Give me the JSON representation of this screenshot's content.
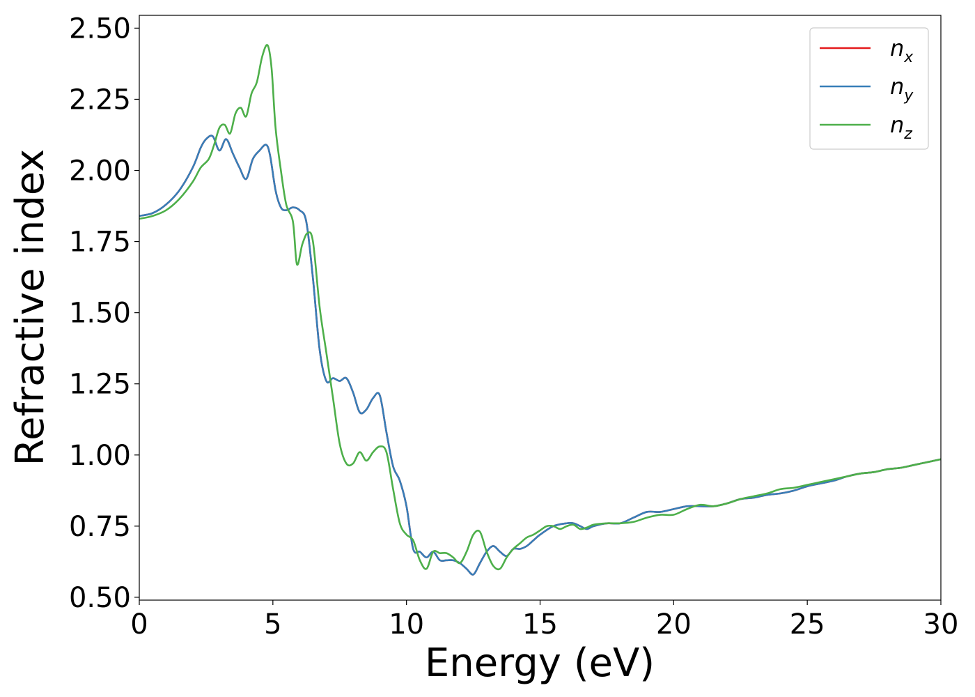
{
  "chart_data": {
    "type": "line",
    "xlabel": "Energy (eV)",
    "ylabel": "Refractive index",
    "xlim": [
      0,
      30
    ],
    "ylim": [
      0.49,
      2.545
    ],
    "xticks": [
      "0",
      "5",
      "10",
      "15",
      "20",
      "25",
      "30"
    ],
    "yticks": [
      "0.50",
      "0.75",
      "1.00",
      "1.25",
      "1.50",
      "1.75",
      "2.00",
      "2.25",
      "2.50"
    ],
    "grid": false,
    "legend_position": "top-right",
    "series": [
      {
        "name": "n_x",
        "legend_base": "n",
        "legend_sub": "x",
        "color": "#e41a1c",
        "x": [
          0,
          0.5,
          1,
          1.5,
          2,
          2.3,
          2.5,
          2.75,
          3,
          3.25,
          3.5,
          3.75,
          4,
          4.25,
          4.5,
          4.75,
          4.9,
          5.1,
          5.3,
          5.5,
          5.75,
          6,
          6.25,
          6.5,
          6.75,
          7,
          7.25,
          7.5,
          7.75,
          8,
          8.25,
          8.5,
          8.75,
          9,
          9.25,
          9.5,
          9.75,
          10,
          10.25,
          10.5,
          10.75,
          11,
          11.25,
          11.5,
          11.75,
          12,
          12.25,
          12.5,
          12.75,
          13,
          13.25,
          13.5,
          13.75,
          14,
          14.25,
          14.5,
          14.75,
          15,
          15.5,
          16,
          16.25,
          16.5,
          16.75,
          17,
          17.5,
          18,
          18.5,
          19,
          19.5,
          20,
          20.5,
          21,
          21.5,
          22,
          22.5,
          23,
          23.5,
          24,
          24.5,
          25,
          25.5,
          26,
          26.5,
          27,
          27.5,
          28,
          28.5,
          29,
          29.5,
          30
        ],
        "y": [
          1.84,
          1.85,
          1.88,
          1.93,
          2.01,
          2.08,
          2.11,
          2.12,
          2.07,
          2.11,
          2.06,
          2.01,
          1.97,
          2.04,
          2.07,
          2.09,
          2.05,
          1.93,
          1.87,
          1.86,
          1.87,
          1.86,
          1.82,
          1.62,
          1.37,
          1.26,
          1.27,
          1.26,
          1.27,
          1.22,
          1.15,
          1.16,
          1.2,
          1.21,
          1.08,
          0.96,
          0.91,
          0.82,
          0.67,
          0.66,
          0.64,
          0.66,
          0.63,
          0.63,
          0.63,
          0.62,
          0.6,
          0.58,
          0.62,
          0.66,
          0.68,
          0.66,
          0.645,
          0.67,
          0.67,
          0.68,
          0.7,
          0.72,
          0.75,
          0.76,
          0.76,
          0.75,
          0.74,
          0.75,
          0.76,
          0.76,
          0.78,
          0.8,
          0.8,
          0.81,
          0.82,
          0.82,
          0.82,
          0.83,
          0.845,
          0.85,
          0.86,
          0.865,
          0.875,
          0.89,
          0.9,
          0.91,
          0.925,
          0.935,
          0.94,
          0.95,
          0.955,
          0.965,
          0.975,
          0.985
        ]
      },
      {
        "name": "n_y",
        "legend_base": "n",
        "legend_sub": "y",
        "color": "#377eb8",
        "x": [
          0,
          0.5,
          1,
          1.5,
          2,
          2.3,
          2.5,
          2.75,
          3,
          3.25,
          3.5,
          3.75,
          4,
          4.25,
          4.5,
          4.75,
          4.9,
          5.1,
          5.3,
          5.5,
          5.75,
          6,
          6.25,
          6.5,
          6.75,
          7,
          7.25,
          7.5,
          7.75,
          8,
          8.25,
          8.5,
          8.75,
          9,
          9.25,
          9.5,
          9.75,
          10,
          10.25,
          10.5,
          10.75,
          11,
          11.25,
          11.5,
          11.75,
          12,
          12.25,
          12.5,
          12.75,
          13,
          13.25,
          13.5,
          13.75,
          14,
          14.25,
          14.5,
          14.75,
          15,
          15.5,
          16,
          16.25,
          16.5,
          16.75,
          17,
          17.5,
          18,
          18.5,
          19,
          19.5,
          20,
          20.5,
          21,
          21.5,
          22,
          22.5,
          23,
          23.5,
          24,
          24.5,
          25,
          25.5,
          26,
          26.5,
          27,
          27.5,
          28,
          28.5,
          29,
          29.5,
          30
        ],
        "y": [
          1.84,
          1.85,
          1.88,
          1.93,
          2.01,
          2.08,
          2.11,
          2.12,
          2.07,
          2.11,
          2.06,
          2.01,
          1.97,
          2.04,
          2.07,
          2.09,
          2.05,
          1.93,
          1.87,
          1.86,
          1.87,
          1.86,
          1.82,
          1.62,
          1.37,
          1.26,
          1.27,
          1.26,
          1.27,
          1.22,
          1.15,
          1.16,
          1.2,
          1.21,
          1.08,
          0.96,
          0.91,
          0.82,
          0.67,
          0.66,
          0.64,
          0.66,
          0.63,
          0.63,
          0.63,
          0.62,
          0.6,
          0.58,
          0.62,
          0.66,
          0.68,
          0.66,
          0.645,
          0.67,
          0.67,
          0.68,
          0.7,
          0.72,
          0.75,
          0.76,
          0.76,
          0.75,
          0.74,
          0.75,
          0.76,
          0.76,
          0.78,
          0.8,
          0.8,
          0.81,
          0.82,
          0.82,
          0.82,
          0.83,
          0.845,
          0.85,
          0.86,
          0.865,
          0.875,
          0.89,
          0.9,
          0.91,
          0.925,
          0.935,
          0.94,
          0.95,
          0.955,
          0.965,
          0.975,
          0.985
        ]
      },
      {
        "name": "n_z",
        "legend_base": "n",
        "legend_sub": "z",
        "color": "#4daf4a",
        "x": [
          0,
          0.5,
          1,
          1.5,
          2,
          2.3,
          2.6,
          2.8,
          3,
          3.2,
          3.4,
          3.6,
          3.8,
          4,
          4.2,
          4.4,
          4.6,
          4.8,
          4.95,
          5.1,
          5.3,
          5.5,
          5.75,
          5.9,
          6.1,
          6.3,
          6.5,
          6.75,
          7,
          7.25,
          7.5,
          7.75,
          8,
          8.25,
          8.5,
          8.75,
          9,
          9.25,
          9.5,
          9.75,
          10,
          10.25,
          10.5,
          10.75,
          11,
          11.25,
          11.5,
          11.75,
          12,
          12.25,
          12.5,
          12.75,
          13,
          13.25,
          13.5,
          13.75,
          14,
          14.25,
          14.5,
          14.75,
          15,
          15.25,
          15.5,
          15.75,
          16,
          16.25,
          16.5,
          16.75,
          17,
          17.5,
          18,
          18.5,
          19,
          19.5,
          20,
          20.5,
          21,
          21.5,
          22,
          22.5,
          23,
          23.5,
          24,
          24.5,
          25,
          25.5,
          26,
          26.5,
          27,
          27.5,
          28,
          28.5,
          29,
          29.5,
          30
        ],
        "y": [
          1.83,
          1.84,
          1.86,
          1.9,
          1.96,
          2.01,
          2.04,
          2.09,
          2.15,
          2.16,
          2.13,
          2.2,
          2.22,
          2.19,
          2.27,
          2.31,
          2.4,
          2.44,
          2.36,
          2.15,
          2.0,
          1.88,
          1.82,
          1.67,
          1.74,
          1.78,
          1.75,
          1.52,
          1.36,
          1.2,
          1.04,
          0.97,
          0.97,
          1.01,
          0.98,
          1.01,
          1.03,
          1.01,
          0.88,
          0.76,
          0.72,
          0.7,
          0.63,
          0.6,
          0.66,
          0.655,
          0.655,
          0.64,
          0.62,
          0.66,
          0.72,
          0.73,
          0.66,
          0.61,
          0.6,
          0.64,
          0.67,
          0.69,
          0.71,
          0.72,
          0.735,
          0.75,
          0.75,
          0.74,
          0.75,
          0.755,
          0.74,
          0.745,
          0.755,
          0.76,
          0.76,
          0.765,
          0.78,
          0.79,
          0.79,
          0.81,
          0.825,
          0.82,
          0.83,
          0.845,
          0.855,
          0.865,
          0.88,
          0.885,
          0.895,
          0.905,
          0.915,
          0.925,
          0.935,
          0.94,
          0.95,
          0.955,
          0.965,
          0.975,
          0.985
        ]
      }
    ]
  }
}
